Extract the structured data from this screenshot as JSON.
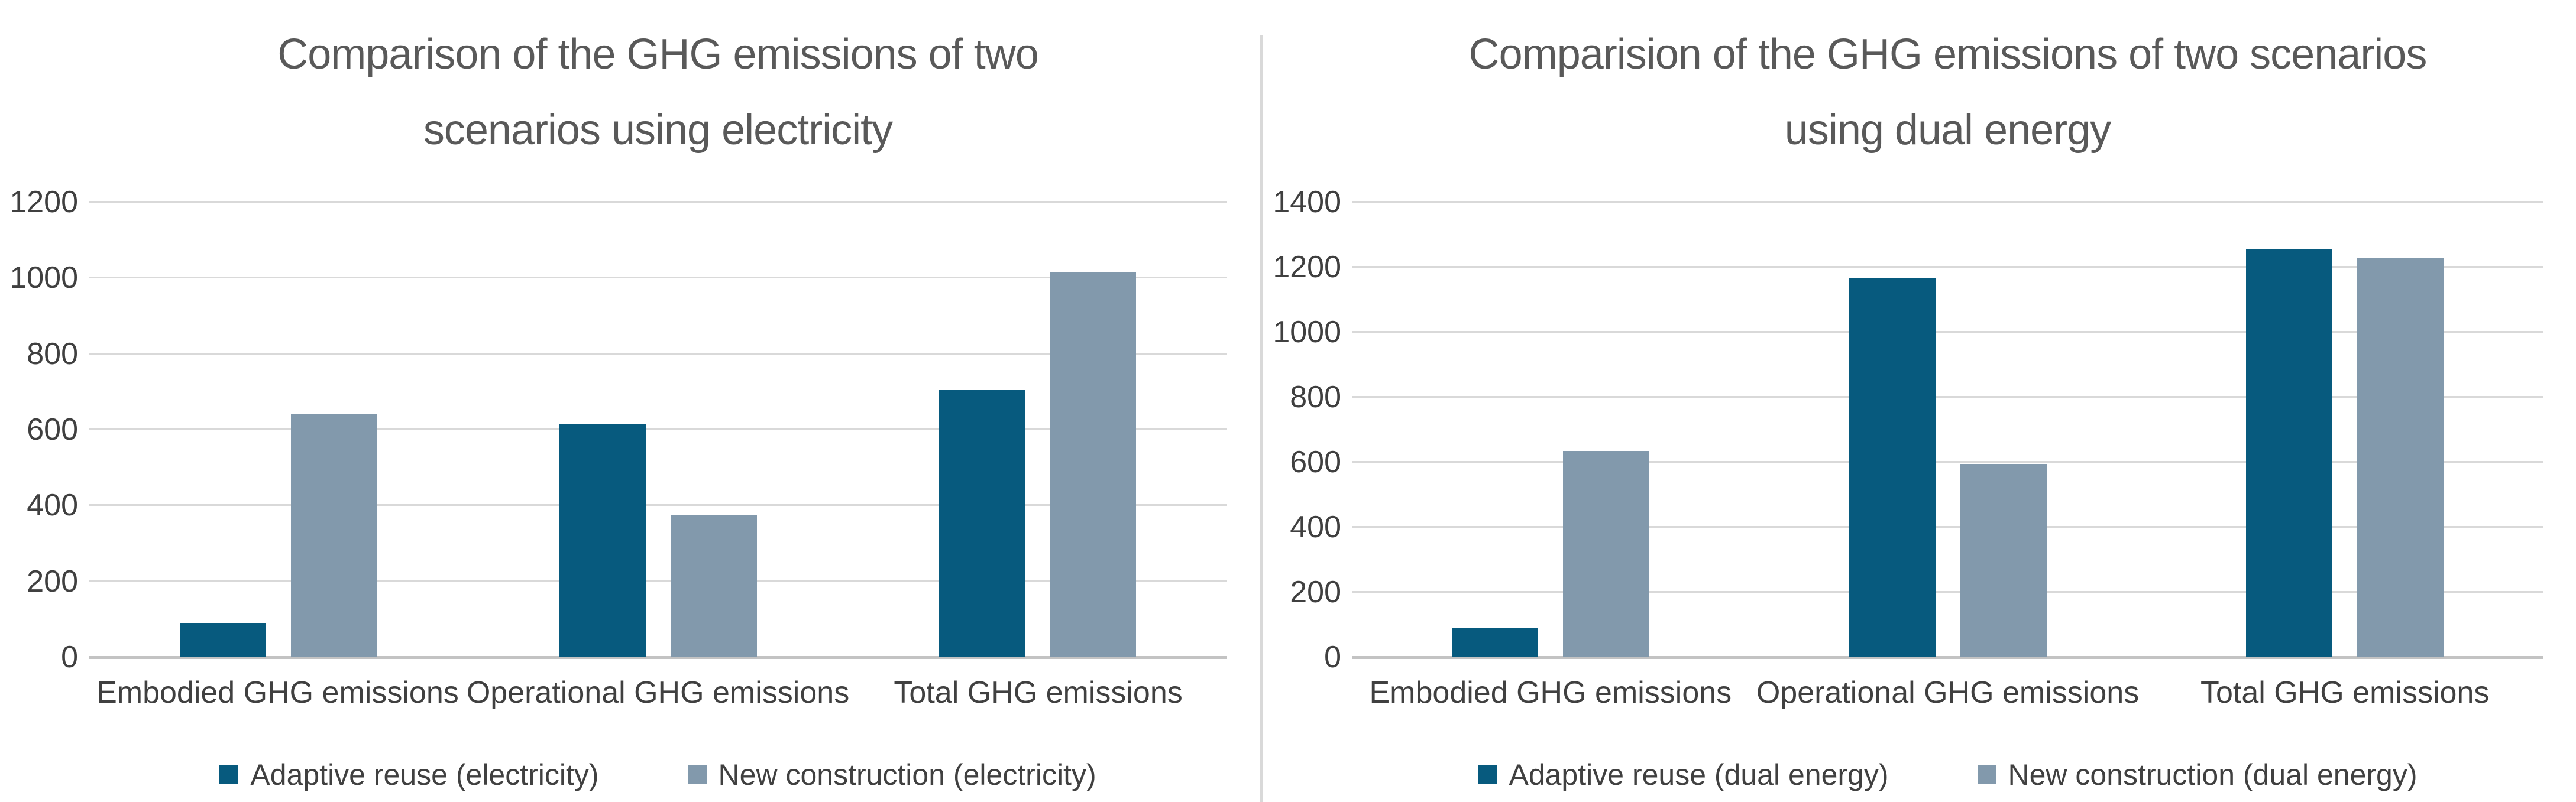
{
  "colors": {
    "background": "#ffffff",
    "series_dark": "#075a7e",
    "series_light": "#8299ac",
    "title_text": "#595959",
    "axis_text": "#404040",
    "gridline": "#d9d9d9",
    "axis_line": "#c3c3c3",
    "divider": "#d9d9d9"
  },
  "chart_data": [
    {
      "type": "bar",
      "title": "Comparison of the GHG emissions of two scenarios using electricity",
      "title_lines": [
        "Comparison of the GHG emissions of two",
        "scenarios using electricity"
      ],
      "categories": [
        "Embodied GHG emissions",
        "Operational GHG emissions",
        "Total GHG emissions"
      ],
      "series": [
        {
          "name": "Adaptive reuse (electricity)",
          "color": "#075a7e",
          "values": [
            90,
            615,
            705
          ]
        },
        {
          "name": "New construction (electricity)",
          "color": "#8299ac",
          "values": [
            640,
            375,
            1015
          ]
        }
      ],
      "xlabel": "",
      "ylabel": "",
      "ylim": [
        0,
        1200
      ],
      "yticks": [
        0,
        200,
        400,
        600,
        800,
        1000,
        1200
      ],
      "grid": "horizontal",
      "legend_position": "bottom"
    },
    {
      "type": "bar",
      "title": "Comparision of the GHG emissions of two scenarios using dual energy",
      "title_lines": [
        "Comparision of the GHG emissions of two scenarios",
        "using dual energy"
      ],
      "categories": [
        "Embodied GHG emissions",
        "Operational GHG emissions",
        "Total GHG emissions"
      ],
      "series": [
        {
          "name": "Adaptive reuse (dual energy)",
          "color": "#075a7e",
          "values": [
            90,
            1165,
            1255
          ]
        },
        {
          "name": "New construction (dual energy)",
          "color": "#8299ac",
          "values": [
            635,
            595,
            1230
          ]
        }
      ],
      "xlabel": "",
      "ylabel": "",
      "ylim": [
        0,
        1400
      ],
      "yticks": [
        0,
        200,
        400,
        600,
        800,
        1000,
        1200,
        1400
      ],
      "grid": "horizontal",
      "legend_position": "bottom"
    }
  ]
}
